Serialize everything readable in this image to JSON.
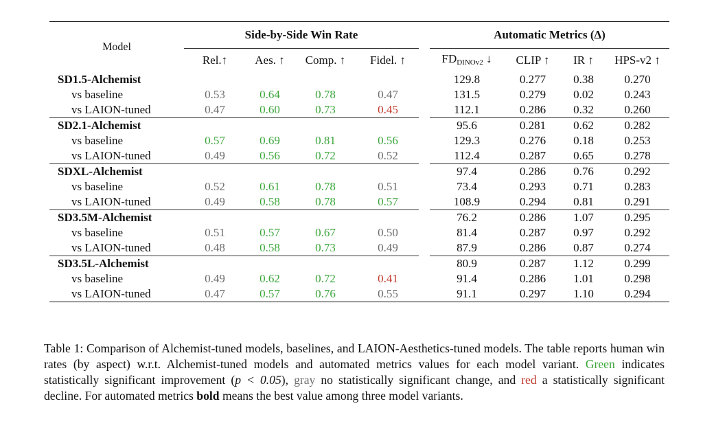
{
  "header": {
    "model": "Model",
    "group_winrate": "Side-by-Side Win Rate",
    "group_auto": "Automatic Metrics (Δ)",
    "columns": [
      "Rel.↑",
      "Aes. ↑",
      "Comp. ↑",
      "Fidel. ↑",
      "FD",
      "DINOv2",
      " ↓",
      "CLIP ↑",
      "IR ↑",
      "HPS-v2 ↑"
    ]
  },
  "groups": [
    {
      "model": "SD1.5-Alchemist",
      "rows": [
        {
          "label": "",
          "win": [
            "",
            "",
            "",
            ""
          ],
          "auto": [
            "129.8",
            "0.277",
            "0.38",
            "0.270"
          ]
        },
        {
          "label": "vs baseline",
          "win": [
            "0.53",
            "0.64",
            "0.78",
            "0.47"
          ],
          "auto": [
            "131.5",
            "0.279",
            "0.02",
            "0.243"
          ]
        },
        {
          "label": "vs LAION-tuned",
          "win": [
            "0.47",
            "0.60",
            "0.73",
            "0.45"
          ],
          "auto": [
            "112.1",
            "0.286",
            "0.32",
            "0.260"
          ]
        }
      ]
    },
    {
      "model": "SD2.1-Alchemist",
      "rows": [
        {
          "label": "",
          "win": [
            "",
            "",
            "",
            ""
          ],
          "auto": [
            "95.6",
            "0.281",
            "0.62",
            "0.282"
          ]
        },
        {
          "label": "vs baseline",
          "win": [
            "0.57",
            "0.69",
            "0.81",
            "0.56"
          ],
          "auto": [
            "129.3",
            "0.276",
            "0.18",
            "0.253"
          ]
        },
        {
          "label": "vs LAION-tuned",
          "win": [
            "0.49",
            "0.56",
            "0.72",
            "0.52"
          ],
          "auto": [
            "112.4",
            "0.287",
            "0.65",
            "0.278"
          ]
        }
      ]
    },
    {
      "model": "SDXL-Alchemist",
      "rows": [
        {
          "label": "",
          "win": [
            "",
            "",
            "",
            ""
          ],
          "auto": [
            "97.4",
            "0.286",
            "0.76",
            "0.292"
          ]
        },
        {
          "label": "vs baseline",
          "win": [
            "0.52",
            "0.61",
            "0.78",
            "0.51"
          ],
          "auto": [
            "73.4",
            "0.293",
            "0.71",
            "0.283"
          ]
        },
        {
          "label": "vs LAION-tuned",
          "win": [
            "0.49",
            "0.58",
            "0.78",
            "0.57"
          ],
          "auto": [
            "108.9",
            "0.294",
            "0.81",
            "0.291"
          ]
        }
      ]
    },
    {
      "model": "SD3.5M-Alchemist",
      "rows": [
        {
          "label": "",
          "win": [
            "",
            "",
            "",
            ""
          ],
          "auto": [
            "76.2",
            "0.286",
            "1.07",
            "0.295"
          ]
        },
        {
          "label": "vs baseline",
          "win": [
            "0.51",
            "0.57",
            "0.67",
            "0.50"
          ],
          "auto": [
            "81.4",
            "0.287",
            "0.97",
            "0.292"
          ]
        },
        {
          "label": "vs LAION-tuned",
          "win": [
            "0.48",
            "0.58",
            "0.73",
            "0.49"
          ],
          "auto": [
            "87.9",
            "0.286",
            "0.87",
            "0.274"
          ]
        }
      ]
    },
    {
      "model": "SD3.5L-Alchemist",
      "rows": [
        {
          "label": "",
          "win": [
            "",
            "",
            "",
            ""
          ],
          "auto": [
            "80.9",
            "0.287",
            "1.12",
            "0.299"
          ]
        },
        {
          "label": "vs baseline",
          "win": [
            "0.49",
            "0.62",
            "0.72",
            "0.41"
          ],
          "auto": [
            "91.4",
            "0.286",
            "1.01",
            "0.298"
          ]
        },
        {
          "label": "vs LAION-tuned",
          "win": [
            "0.47",
            "0.57",
            "0.76",
            "0.55"
          ],
          "auto": [
            "91.1",
            "0.297",
            "1.10",
            "0.294"
          ]
        }
      ]
    }
  ],
  "styles": {
    "win": [
      [
        [
          "",
          "",
          "",
          ""
        ],
        [
          "gray",
          "green",
          "green",
          "gray"
        ],
        [
          "gray",
          "green",
          "green",
          "red"
        ]
      ],
      [
        [
          "",
          "",
          "",
          ""
        ],
        [
          "green",
          "green",
          "green",
          "green"
        ],
        [
          "gray",
          "green",
          "green",
          "gray"
        ]
      ],
      [
        [
          "",
          "",
          "",
          ""
        ],
        [
          "gray",
          "green",
          "green",
          "gray"
        ],
        [
          "gray",
          "green",
          "green",
          "green"
        ]
      ],
      [
        [
          "",
          "",
          "",
          ""
        ],
        [
          "gray",
          "green",
          "green",
          "gray"
        ],
        [
          "gray",
          "green",
          "green",
          "gray"
        ]
      ],
      [
        [
          "",
          "",
          "",
          ""
        ],
        [
          "gray",
          "green",
          "green",
          "red"
        ],
        [
          "gray",
          "green",
          "green",
          "gray"
        ]
      ]
    ],
    "auto_bold": [
      [
        [
          false,
          false,
          true,
          true
        ],
        [
          false,
          false,
          false,
          false
        ],
        [
          true,
          true,
          false,
          false
        ]
      ],
      [
        [
          true,
          false,
          false,
          true
        ],
        [
          false,
          false,
          false,
          false
        ],
        [
          false,
          true,
          true,
          false
        ]
      ],
      [
        [
          false,
          false,
          false,
          true
        ],
        [
          true,
          false,
          false,
          false
        ],
        [
          false,
          true,
          true,
          false
        ]
      ],
      [
        [
          true,
          false,
          true,
          true
        ],
        [
          false,
          true,
          false,
          false
        ],
        [
          false,
          false,
          false,
          false
        ]
      ],
      [
        [
          true,
          false,
          true,
          true
        ],
        [
          false,
          false,
          false,
          false
        ],
        [
          false,
          true,
          false,
          false
        ]
      ]
    ]
  },
  "colors": {
    "green": "#3aa53a",
    "gray": "#6b6b6b",
    "red": "#c0392b"
  },
  "caption": {
    "p1": "Table 1: Comparison of Alchemist-tuned models, baselines, and LAION-Aesthetics-tuned models. The table reports human win rates (by aspect) w.r.t. Alchemist-tuned models and automated metrics values for each model variant. ",
    "green_word": "Green",
    "p2": " indicates statistically significant improvement (",
    "math": "p < 0.05",
    "p3": "), ",
    "gray_word": "gray",
    "p4": " no statistically significant change, and ",
    "red_word": "red",
    "p5": " a statistically significant decline. For automated metrics ",
    "bold_word": "bold",
    "p6": " means the best value among three model variants."
  }
}
